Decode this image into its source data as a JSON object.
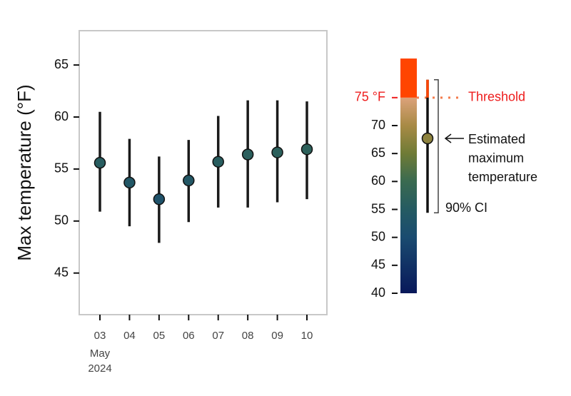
{
  "chart_data": {
    "type": "errorbar",
    "ylabel": "Max temperature (°F)",
    "categories": [
      "03",
      "04",
      "05",
      "06",
      "07",
      "08",
      "09",
      "10"
    ],
    "x_group_label": [
      "May",
      "2024"
    ],
    "values": [
      55.6,
      53.7,
      52.1,
      53.9,
      55.7,
      56.4,
      56.6,
      56.9
    ],
    "lower": [
      50.9,
      49.5,
      47.9,
      49.9,
      51.3,
      51.3,
      51.8,
      52.1
    ],
    "upper": [
      60.5,
      57.9,
      56.2,
      57.8,
      60.1,
      61.6,
      61.6,
      61.5
    ],
    "ylim": [
      41,
      68.3
    ],
    "yticks": [
      45,
      50,
      55,
      60,
      65
    ],
    "colorscale": [
      [
        40,
        "#08185a"
      ],
      [
        50,
        "#1a4b70"
      ],
      [
        55,
        "#255b62"
      ],
      [
        60,
        "#3a6a50"
      ],
      [
        65,
        "#6f7b36"
      ],
      [
        70,
        "#a88a45"
      ],
      [
        75,
        "#dca27a"
      ]
    ],
    "above_threshold_color": "#ff4500",
    "colorbar": {
      "lim": [
        40,
        82
      ],
      "ticks": [
        40,
        45,
        50,
        55,
        60,
        65,
        70,
        {
          "value": 75,
          "label": "75 °F"
        }
      ]
    },
    "threshold": {
      "value": 75,
      "label": "Threshold",
      "color": "#f47c4c",
      "text_color": "#ee1c1c"
    },
    "legend": {
      "value": 67.7,
      "lower": 54.4,
      "upper": 78.2,
      "point_label": [
        "Estimated",
        "maximum",
        "temperature"
      ],
      "ci_label": "90% CI"
    }
  }
}
